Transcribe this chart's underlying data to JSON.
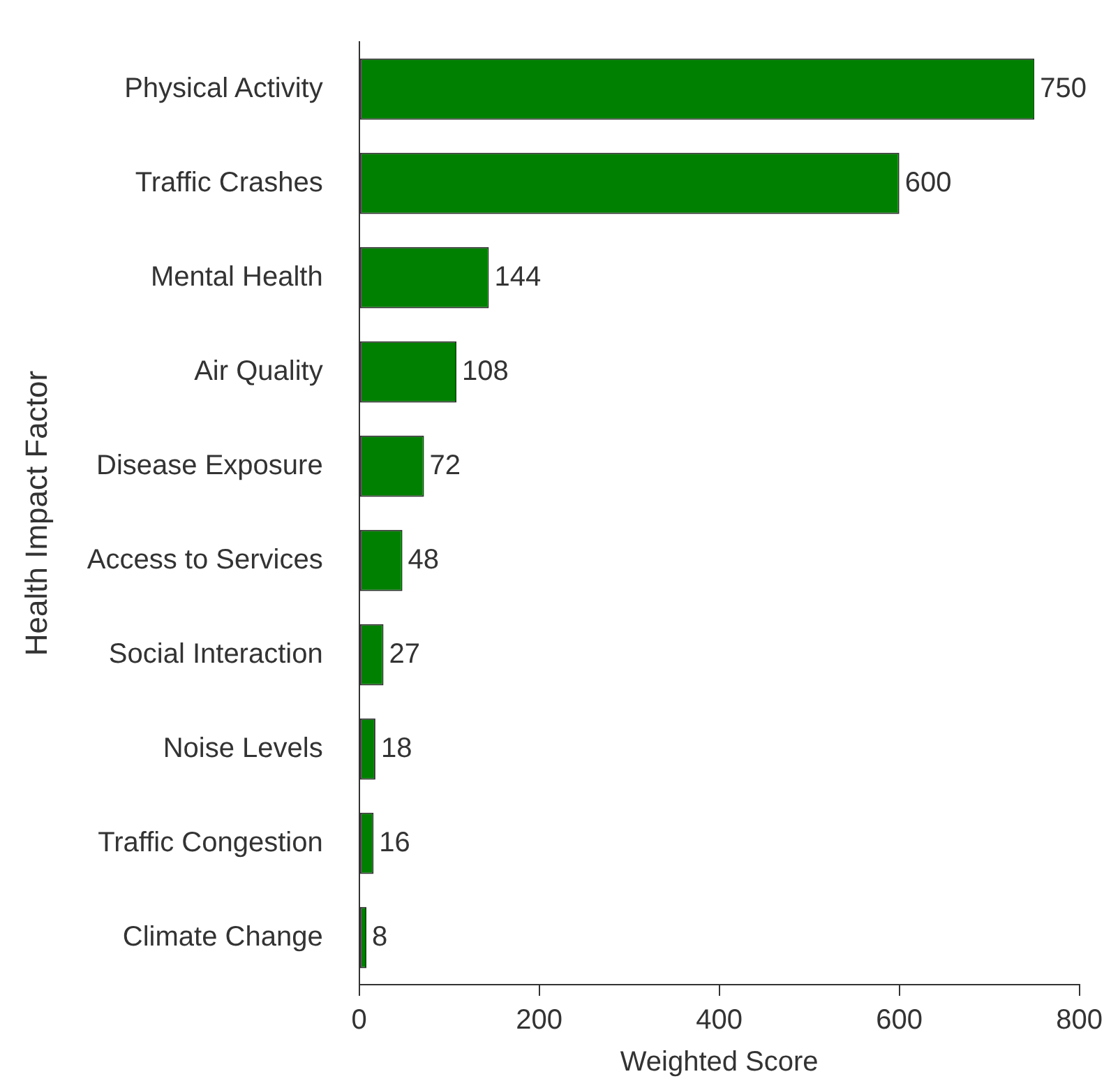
{
  "chart_data": {
    "type": "bar",
    "orientation": "horizontal",
    "xlabel": "Weighted Score",
    "ylabel": "Health Impact Factor",
    "categories": [
      "Physical Activity",
      "Traffic Crashes",
      "Mental Health",
      "Air Quality",
      "Disease Exposure",
      "Access to Services",
      "Social Interaction",
      "Noise Levels",
      "Traffic Congestion",
      "Climate Change"
    ],
    "values": [
      750,
      600,
      144,
      108,
      72,
      48,
      27,
      18,
      16,
      8
    ],
    "color": "#008000",
    "xlim": [
      0,
      800
    ],
    "xticks": [
      0,
      200,
      400,
      600,
      800
    ],
    "grid": false,
    "legend": false,
    "data_labels": true
  }
}
